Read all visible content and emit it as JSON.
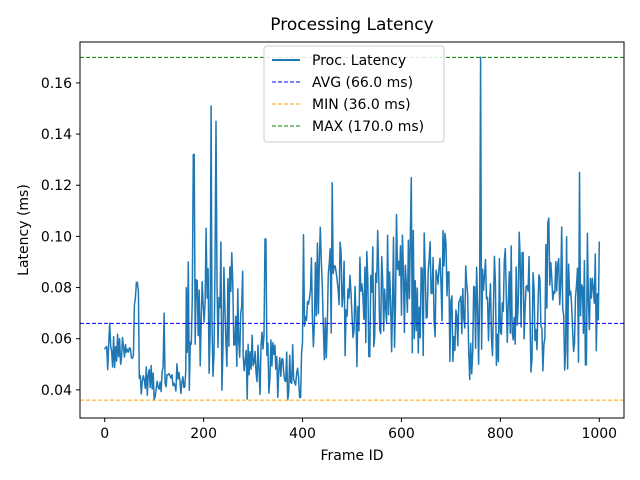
{
  "chart_data": {
    "type": "line",
    "title": "Processing Latency",
    "xlabel": "Frame ID",
    "ylabel": "Latency (ms)",
    "xlim": [
      -50,
      1050
    ],
    "ylim": [
      0.029,
      0.176
    ],
    "x_ticks": [
      0,
      200,
      400,
      600,
      800,
      1000
    ],
    "y_ticks": [
      0.04,
      0.06,
      0.08,
      0.1,
      0.12,
      0.14,
      0.16
    ],
    "x_tick_labels": [
      "0",
      "200",
      "400",
      "600",
      "800",
      "1000"
    ],
    "y_tick_labels": [
      "0.04",
      "0.06",
      "0.08",
      "0.10",
      "0.12",
      "0.14",
      "0.16"
    ],
    "grid": false,
    "legend_position": "top-center",
    "series": [
      {
        "name": "Proc. Latency",
        "color": "#1f77b4",
        "style": "solid",
        "x_range": [
          0,
          1000
        ],
        "segments": [
          {
            "x": [
              0,
              60
            ],
            "base": 0.054,
            "jitter": 0.01,
            "peaks": [
              [
                10,
                0.066
              ],
              [
                30,
                0.06
              ]
            ]
          },
          {
            "x": [
              60,
              70
            ],
            "base": 0.075,
            "jitter": 0.008,
            "peaks": [
              [
                65,
                0.082
              ]
            ]
          },
          {
            "x": [
              70,
              165
            ],
            "base": 0.044,
            "jitter": 0.008,
            "peaks": [
              [
                120,
                0.07
              ],
              [
                100,
                0.036
              ]
            ]
          },
          {
            "x": [
              165,
              280
            ],
            "base": 0.07,
            "jitter": 0.04,
            "peaks": [
              [
                180,
                0.132
              ],
              [
                215,
                0.151
              ],
              [
                225,
                0.145
              ]
            ]
          },
          {
            "x": [
              280,
              400
            ],
            "base": 0.05,
            "jitter": 0.015,
            "peaks": [
              [
                325,
                0.099
              ],
              [
                370,
                0.036
              ],
              [
                395,
                0.037
              ]
            ]
          },
          {
            "x": [
              400,
              1000
            ],
            "base": 0.075,
            "jitter": 0.035,
            "peaks": [
              [
                460,
                0.121
              ],
              [
                620,
                0.123
              ],
              [
                760,
                0.17
              ],
              [
                960,
                0.125
              ]
            ]
          }
        ]
      },
      {
        "name": "AVG (66.0 ms)",
        "color": "#0000ff",
        "style": "dashed",
        "value": 0.066
      },
      {
        "name": "MIN (36.0 ms)",
        "color": "#ffa500",
        "style": "dashed",
        "value": 0.036
      },
      {
        "name": "MAX (170.0 ms)",
        "color": "#008000",
        "style": "dashed",
        "value": 0.17
      }
    ]
  }
}
